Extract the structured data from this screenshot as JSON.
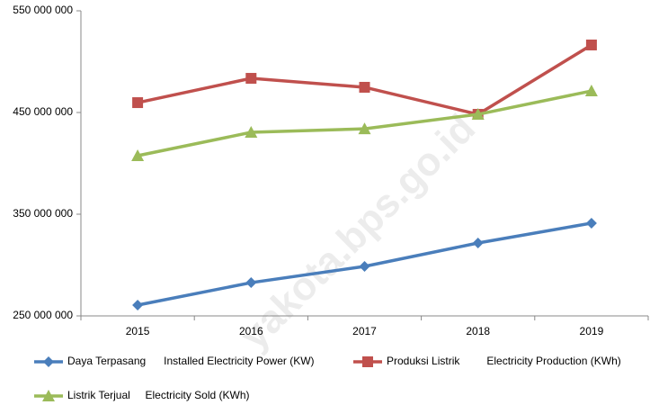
{
  "chart_data": {
    "type": "line",
    "watermark": "yakota.bps.go.id",
    "categories": [
      "2015",
      "2016",
      "2017",
      "2018",
      "2019"
    ],
    "series": [
      {
        "name": "Daya Terpasang      Installed Electricity Power (KW)",
        "color": "#4a7ebb",
        "marker": "diamond",
        "values": [
          260600000,
          282700000,
          298700000,
          321700000,
          341200000
        ]
      },
      {
        "name": "Produksi Listrik         Electricity Production (KWh)",
        "color": "#c0504d",
        "marker": "square",
        "values": [
          459700000,
          483600000,
          474800000,
          448200000,
          516400000
        ]
      },
      {
        "name": "Listrik Terjual     Electricity Sold (KWh)",
        "color": "#9bbb59",
        "marker": "triangle",
        "values": [
          407500000,
          430500000,
          434000000,
          448200000,
          471200000
        ]
      }
    ],
    "ylim": [
      250000000,
      550000000
    ],
    "yticks": [
      {
        "value": 250000000,
        "label": "250 000 000"
      },
      {
        "value": 350000000,
        "label": "350 000 000"
      },
      {
        "value": 450000000,
        "label": "450 000 000"
      },
      {
        "value": 550000000,
        "label": "550 000 000"
      }
    ],
    "grid": false
  }
}
